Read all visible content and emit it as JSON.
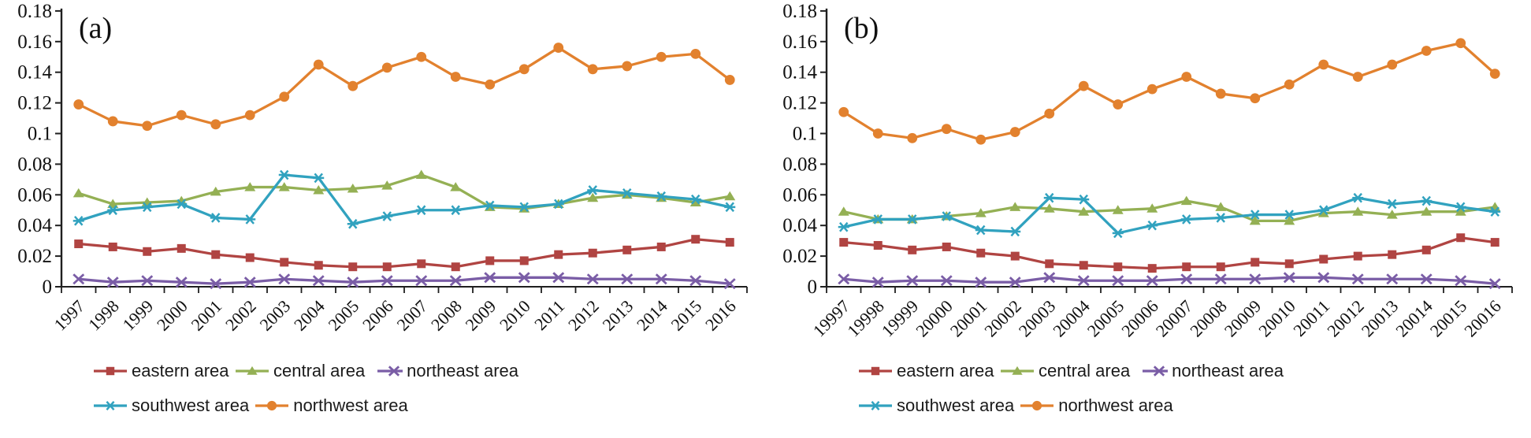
{
  "figure": {
    "background": "#ffffff",
    "text_color": "#111111",
    "axis_color": "#1f1f1f"
  },
  "legend_rows": [
    [
      "eastern area",
      "central area",
      "northeast area"
    ],
    [
      "southwest area",
      "northwest area"
    ]
  ],
  "chart_data": [
    {
      "type": "line",
      "panel_label": "(a)",
      "x": [
        "1997",
        "1998",
        "1999",
        "2000",
        "2001",
        "2002",
        "2003",
        "2004",
        "2005",
        "2006",
        "2007",
        "2008",
        "2009",
        "2010",
        "2011",
        "2012",
        "2013",
        "2014",
        "2015",
        "2016"
      ],
      "ylim": [
        0,
        0.18
      ],
      "ytick_labels": [
        "0",
        "0.02",
        "0.04",
        "0.06",
        "0.08",
        "0.1",
        "0.12",
        "0.14",
        "0.16",
        "0.18"
      ],
      "grid": "off",
      "legend_position": "bottom-left",
      "series": [
        {
          "name": "eastern area",
          "color": "#b04442",
          "marker": "square",
          "values": [
            0.028,
            0.026,
            0.023,
            0.025,
            0.021,
            0.019,
            0.016,
            0.014,
            0.013,
            0.013,
            0.015,
            0.013,
            0.017,
            0.017,
            0.021,
            0.022,
            0.024,
            0.026,
            0.031,
            0.029
          ]
        },
        {
          "name": "central area",
          "color": "#94b054",
          "marker": "triangle",
          "values": [
            0.061,
            0.054,
            0.055,
            0.056,
            0.062,
            0.065,
            0.065,
            0.063,
            0.064,
            0.066,
            0.073,
            0.065,
            0.052,
            0.051,
            0.054,
            0.058,
            0.06,
            0.058,
            0.055,
            0.059
          ]
        },
        {
          "name": "northeast area",
          "color": "#7a5da6",
          "marker": "x",
          "values": [
            0.005,
            0.003,
            0.004,
            0.003,
            0.002,
            0.003,
            0.005,
            0.004,
            0.003,
            0.004,
            0.004,
            0.004,
            0.006,
            0.006,
            0.006,
            0.005,
            0.005,
            0.005,
            0.004,
            0.002
          ]
        },
        {
          "name": "southwest area",
          "color": "#31a2bf",
          "marker": "star",
          "values": [
            0.043,
            0.05,
            0.052,
            0.054,
            0.045,
            0.044,
            0.073,
            0.071,
            0.041,
            0.046,
            0.05,
            0.05,
            0.053,
            0.052,
            0.054,
            0.063,
            0.061,
            0.059,
            0.057,
            0.052
          ]
        },
        {
          "name": "northwest area",
          "color": "#e2812e",
          "marker": "circle",
          "values": [
            0.119,
            0.108,
            0.105,
            0.112,
            0.106,
            0.112,
            0.124,
            0.145,
            0.131,
            0.143,
            0.15,
            0.137,
            0.132,
            0.142,
            0.156,
            0.142,
            0.144,
            0.15,
            0.152,
            0.135
          ]
        }
      ]
    },
    {
      "type": "line",
      "panel_label": "(b)",
      "x": [
        "19997",
        "19998",
        "19999",
        "20000",
        "20001",
        "20002",
        "20003",
        "20004",
        "20005",
        "20006",
        "20007",
        "20008",
        "20009",
        "20010",
        "20011",
        "20012",
        "20013",
        "20014",
        "20015",
        "20016"
      ],
      "ylim": [
        0,
        0.18
      ],
      "ytick_labels": [
        "0",
        "0.02",
        "0.04",
        "0.06",
        "0.08",
        "0.1",
        "0.12",
        "0.14",
        "0.16",
        "0.18"
      ],
      "grid": "off",
      "legend_position": "bottom-left",
      "series": [
        {
          "name": "eastern area",
          "color": "#b04442",
          "marker": "square",
          "values": [
            0.029,
            0.027,
            0.024,
            0.026,
            0.022,
            0.02,
            0.015,
            0.014,
            0.013,
            0.012,
            0.013,
            0.013,
            0.016,
            0.015,
            0.018,
            0.02,
            0.021,
            0.024,
            0.032,
            0.029
          ]
        },
        {
          "name": "central area",
          "color": "#94b054",
          "marker": "triangle",
          "values": [
            0.049,
            0.044,
            0.044,
            0.046,
            0.048,
            0.052,
            0.051,
            0.049,
            0.05,
            0.051,
            0.056,
            0.052,
            0.043,
            0.043,
            0.048,
            0.049,
            0.047,
            0.049,
            0.049,
            0.052
          ]
        },
        {
          "name": "northeast area",
          "color": "#7a5da6",
          "marker": "x",
          "values": [
            0.005,
            0.003,
            0.004,
            0.004,
            0.003,
            0.003,
            0.006,
            0.004,
            0.004,
            0.004,
            0.005,
            0.005,
            0.005,
            0.006,
            0.006,
            0.005,
            0.005,
            0.005,
            0.004,
            0.002
          ]
        },
        {
          "name": "southwest area",
          "color": "#31a2bf",
          "marker": "star",
          "values": [
            0.039,
            0.044,
            0.044,
            0.046,
            0.037,
            0.036,
            0.058,
            0.057,
            0.035,
            0.04,
            0.044,
            0.045,
            0.047,
            0.047,
            0.05,
            0.058,
            0.054,
            0.056,
            0.052,
            0.049
          ]
        },
        {
          "name": "northwest area",
          "color": "#e2812e",
          "marker": "circle",
          "values": [
            0.114,
            0.1,
            0.097,
            0.103,
            0.096,
            0.101,
            0.113,
            0.131,
            0.119,
            0.129,
            0.137,
            0.126,
            0.123,
            0.132,
            0.145,
            0.137,
            0.145,
            0.154,
            0.159,
            0.139
          ]
        }
      ]
    }
  ]
}
